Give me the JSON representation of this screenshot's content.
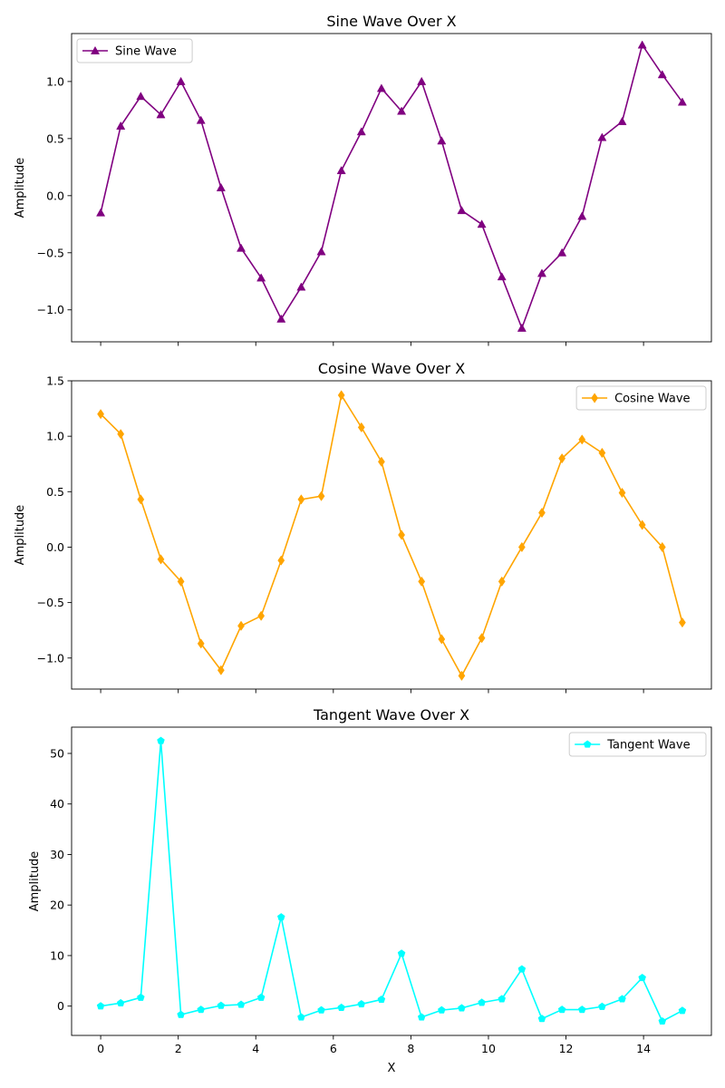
{
  "chart_data": [
    {
      "type": "line",
      "title": "Sine Wave Over X",
      "xlabel": "",
      "ylabel": "Amplitude",
      "xlim": [
        -0.75,
        15.75
      ],
      "ylim": [
        -1.28,
        1.42
      ],
      "yticks": [
        -1.0,
        -0.5,
        0.0,
        0.5,
        1.0
      ],
      "yticklabels": [
        "−1.0",
        "−0.5",
        "0.0",
        "0.5",
        "1.0"
      ],
      "xticks": [
        0,
        2,
        4,
        6,
        8,
        10,
        12,
        14
      ],
      "show_xticklabels": false,
      "grid": false,
      "legend_position": "upper-left",
      "series": [
        {
          "name": "Sine Wave",
          "color": "#800080",
          "marker": "triangle-up",
          "x": [
            0.0,
            0.517,
            1.034,
            1.552,
            2.069,
            2.586,
            3.103,
            3.621,
            4.138,
            4.655,
            5.172,
            5.69,
            6.207,
            6.724,
            7.241,
            7.759,
            8.276,
            8.793,
            9.31,
            9.828,
            10.345,
            10.862,
            11.379,
            11.897,
            12.414,
            12.931,
            13.448,
            13.966,
            14.483,
            15.0
          ],
          "y": [
            -0.15,
            0.61,
            0.87,
            0.71,
            1.0,
            0.66,
            0.07,
            -0.46,
            -0.72,
            -1.08,
            -0.8,
            -0.49,
            0.22,
            0.56,
            0.94,
            0.74,
            1.0,
            0.48,
            -0.13,
            -0.25,
            -0.71,
            -1.16,
            -0.68,
            -0.5,
            -0.18,
            0.51,
            0.65,
            1.32,
            1.06,
            0.82
          ]
        }
      ]
    },
    {
      "type": "line",
      "title": "Cosine Wave Over X",
      "xlabel": "",
      "ylabel": "Amplitude",
      "xlim": [
        -0.75,
        15.75
      ],
      "ylim": [
        -1.28,
        1.5
      ],
      "yticks": [
        -1.0,
        -0.5,
        0.0,
        0.5,
        1.0,
        1.5
      ],
      "yticklabels": [
        "−1.0",
        "−0.5",
        "0.0",
        "0.5",
        "1.0",
        "1.5"
      ],
      "xticks": [
        0,
        2,
        4,
        6,
        8,
        10,
        12,
        14
      ],
      "show_xticklabels": false,
      "grid": false,
      "legend_position": "upper-right",
      "series": [
        {
          "name": "Cosine Wave",
          "color": "#FFA500",
          "marker": "thin-diamond",
          "x": [
            0.0,
            0.517,
            1.034,
            1.552,
            2.069,
            2.586,
            3.103,
            3.621,
            4.138,
            4.655,
            5.172,
            5.69,
            6.207,
            6.724,
            7.241,
            7.759,
            8.276,
            8.793,
            9.31,
            9.828,
            10.345,
            10.862,
            11.379,
            11.897,
            12.414,
            12.931,
            13.448,
            13.966,
            14.483,
            15.0
          ],
          "y": [
            1.2,
            1.02,
            0.43,
            -0.11,
            -0.31,
            -0.87,
            -1.11,
            -0.71,
            -0.62,
            -0.12,
            0.43,
            0.46,
            1.37,
            1.08,
            0.77,
            0.11,
            -0.31,
            -0.83,
            -1.16,
            -0.82,
            -0.31,
            0.0,
            0.31,
            0.8,
            0.97,
            0.85,
            0.49,
            0.2,
            0.0,
            -0.68
          ]
        }
      ]
    },
    {
      "type": "line",
      "title": "Tangent Wave Over X",
      "xlabel": "X",
      "ylabel": "Amplitude",
      "xlim": [
        -0.75,
        15.75
      ],
      "ylim": [
        -5.8,
        55.2
      ],
      "yticks": [
        0,
        10,
        20,
        30,
        40,
        50
      ],
      "yticklabels": [
        "0",
        "10",
        "20",
        "30",
        "40",
        "50"
      ],
      "xticks": [
        0,
        2,
        4,
        6,
        8,
        10,
        12,
        14
      ],
      "xticklabels": [
        "0",
        "2",
        "4",
        "6",
        "8",
        "10",
        "12",
        "14"
      ],
      "show_xticklabels": true,
      "grid": false,
      "legend_position": "upper-right",
      "series": [
        {
          "name": "Tangent Wave",
          "color": "#00FFFF",
          "marker": "pentagon",
          "x": [
            0.0,
            0.517,
            1.034,
            1.552,
            2.069,
            2.586,
            3.103,
            3.621,
            4.138,
            4.655,
            5.172,
            5.69,
            6.207,
            6.724,
            7.241,
            7.759,
            8.276,
            8.793,
            9.31,
            9.828,
            10.345,
            10.862,
            11.379,
            11.897,
            12.414,
            12.931,
            13.448,
            13.966,
            14.483,
            15.0
          ],
          "y": [
            0.0,
            0.6,
            1.7,
            52.5,
            -1.7,
            -0.7,
            0.1,
            0.3,
            1.7,
            17.6,
            -2.2,
            -0.8,
            -0.3,
            0.4,
            1.3,
            10.4,
            -2.2,
            -0.8,
            -0.4,
            0.7,
            1.4,
            7.3,
            -2.5,
            -0.7,
            -0.7,
            -0.1,
            1.4,
            5.6,
            -3.0,
            -0.9
          ]
        }
      ]
    }
  ]
}
